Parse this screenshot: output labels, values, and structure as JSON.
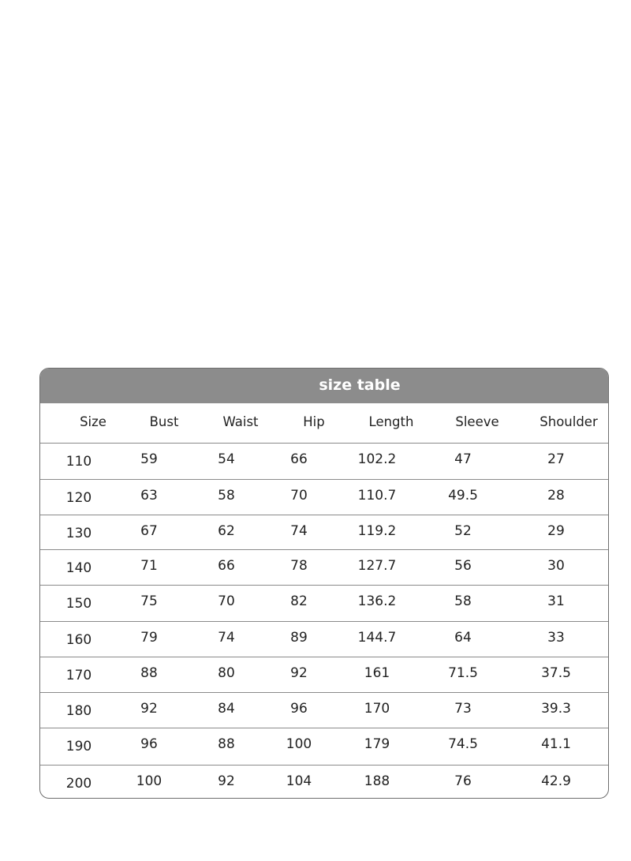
{
  "title": "size table",
  "header_color": "#8c8c8c",
  "columns": [
    "Size",
    "Bust",
    "Waist",
    "Hip",
    "Length",
    "Sleeve",
    "Shoulder"
  ],
  "rows": [
    [
      "110",
      "59",
      "54",
      "66",
      "102.2",
      "47",
      "27"
    ],
    [
      "120",
      "63",
      "58",
      "70",
      "110.7",
      "49.5",
      "28"
    ],
    [
      "130",
      "67",
      "62",
      "74",
      "119.2",
      "52",
      "29"
    ],
    [
      "140",
      "71",
      "66",
      "78",
      "127.7",
      "56",
      "30"
    ],
    [
      "150",
      "75",
      "70",
      "82",
      "136.2",
      "58",
      "31"
    ],
    [
      "160",
      "79",
      "74",
      "89",
      "144.7",
      "64",
      "33"
    ],
    [
      "170",
      "88",
      "80",
      "92",
      "161",
      "71.5",
      "37.5"
    ],
    [
      "180",
      "92",
      "84",
      "96",
      "170",
      "73",
      "39.3"
    ],
    [
      "190",
      "96",
      "88",
      "100",
      "179",
      "74.5",
      "41.1"
    ],
    [
      "200",
      "100",
      "92",
      "104",
      "188",
      "76",
      "42.9"
    ]
  ]
}
